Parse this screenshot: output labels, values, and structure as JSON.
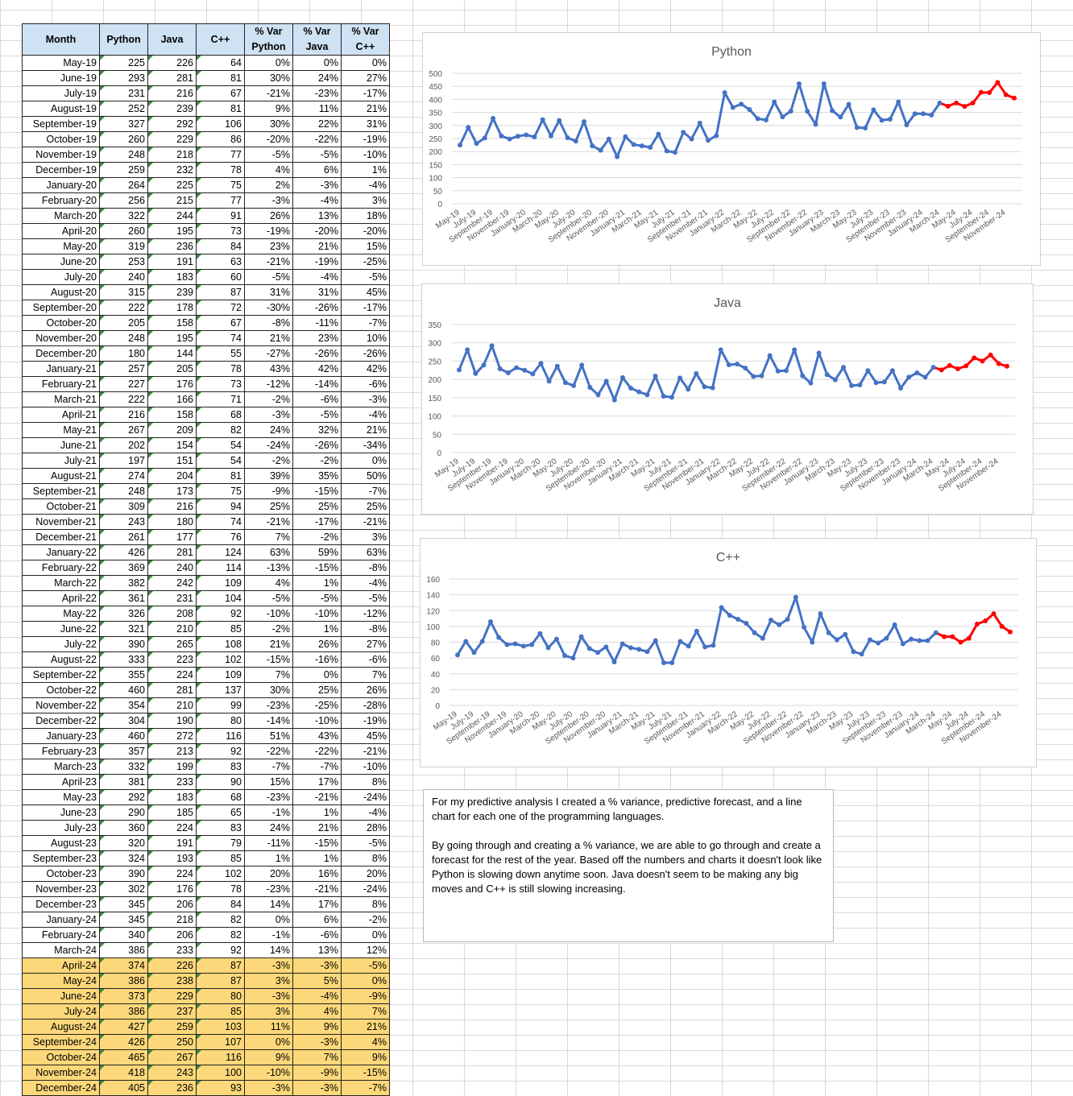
{
  "table": {
    "headers": [
      "Month",
      "Python",
      "Java",
      "C++",
      "% Var Python",
      "% Var Java",
      "% Var C++"
    ],
    "rows": [
      [
        "May-19",
        "225",
        "226",
        "64",
        "0%",
        "0%",
        "0%"
      ],
      [
        "June-19",
        "293",
        "281",
        "81",
        "30%",
        "24%",
        "27%"
      ],
      [
        "July-19",
        "231",
        "216",
        "67",
        "-21%",
        "-23%",
        "-17%"
      ],
      [
        "August-19",
        "252",
        "239",
        "81",
        "9%",
        "11%",
        "21%"
      ],
      [
        "September-19",
        "327",
        "292",
        "106",
        "30%",
        "22%",
        "31%"
      ],
      [
        "October-19",
        "260",
        "229",
        "86",
        "-20%",
        "-22%",
        "-19%"
      ],
      [
        "November-19",
        "248",
        "218",
        "77",
        "-5%",
        "-5%",
        "-10%"
      ],
      [
        "December-19",
        "259",
        "232",
        "78",
        "4%",
        "6%",
        "1%"
      ],
      [
        "January-20",
        "264",
        "225",
        "75",
        "2%",
        "-3%",
        "-4%"
      ],
      [
        "February-20",
        "256",
        "215",
        "77",
        "-3%",
        "-4%",
        "3%"
      ],
      [
        "March-20",
        "322",
        "244",
        "91",
        "26%",
        "13%",
        "18%"
      ],
      [
        "April-20",
        "260",
        "195",
        "73",
        "-19%",
        "-20%",
        "-20%"
      ],
      [
        "May-20",
        "319",
        "236",
        "84",
        "23%",
        "21%",
        "15%"
      ],
      [
        "June-20",
        "253",
        "191",
        "63",
        "-21%",
        "-19%",
        "-25%"
      ],
      [
        "July-20",
        "240",
        "183",
        "60",
        "-5%",
        "-4%",
        "-5%"
      ],
      [
        "August-20",
        "315",
        "239",
        "87",
        "31%",
        "31%",
        "45%"
      ],
      [
        "September-20",
        "222",
        "178",
        "72",
        "-30%",
        "-26%",
        "-17%"
      ],
      [
        "October-20",
        "205",
        "158",
        "67",
        "-8%",
        "-11%",
        "-7%"
      ],
      [
        "November-20",
        "248",
        "195",
        "74",
        "21%",
        "23%",
        "10%"
      ],
      [
        "December-20",
        "180",
        "144",
        "55",
        "-27%",
        "-26%",
        "-26%"
      ],
      [
        "January-21",
        "257",
        "205",
        "78",
        "43%",
        "42%",
        "42%"
      ],
      [
        "February-21",
        "227",
        "176",
        "73",
        "-12%",
        "-14%",
        "-6%"
      ],
      [
        "March-21",
        "222",
        "166",
        "71",
        "-2%",
        "-6%",
        "-3%"
      ],
      [
        "April-21",
        "216",
        "158",
        "68",
        "-3%",
        "-5%",
        "-4%"
      ],
      [
        "May-21",
        "267",
        "209",
        "82",
        "24%",
        "32%",
        "21%"
      ],
      [
        "June-21",
        "202",
        "154",
        "54",
        "-24%",
        "-26%",
        "-34%"
      ],
      [
        "July-21",
        "197",
        "151",
        "54",
        "-2%",
        "-2%",
        "0%"
      ],
      [
        "August-21",
        "274",
        "204",
        "81",
        "39%",
        "35%",
        "50%"
      ],
      [
        "September-21",
        "248",
        "173",
        "75",
        "-9%",
        "-15%",
        "-7%"
      ],
      [
        "October-21",
        "309",
        "216",
        "94",
        "25%",
        "25%",
        "25%"
      ],
      [
        "November-21",
        "243",
        "180",
        "74",
        "-21%",
        "-17%",
        "-21%"
      ],
      [
        "December-21",
        "261",
        "177",
        "76",
        "7%",
        "-2%",
        "3%"
      ],
      [
        "January-22",
        "426",
        "281",
        "124",
        "63%",
        "59%",
        "63%"
      ],
      [
        "February-22",
        "369",
        "240",
        "114",
        "-13%",
        "-15%",
        "-8%"
      ],
      [
        "March-22",
        "382",
        "242",
        "109",
        "4%",
        "1%",
        "-4%"
      ],
      [
        "April-22",
        "361",
        "231",
        "104",
        "-5%",
        "-5%",
        "-5%"
      ],
      [
        "May-22",
        "326",
        "208",
        "92",
        "-10%",
        "-10%",
        "-12%"
      ],
      [
        "June-22",
        "321",
        "210",
        "85",
        "-2%",
        "1%",
        "-8%"
      ],
      [
        "July-22",
        "390",
        "265",
        "108",
        "21%",
        "26%",
        "27%"
      ],
      [
        "August-22",
        "333",
        "223",
        "102",
        "-15%",
        "-16%",
        "-6%"
      ],
      [
        "September-22",
        "355",
        "224",
        "109",
        "7%",
        "0%",
        "7%"
      ],
      [
        "October-22",
        "460",
        "281",
        "137",
        "30%",
        "25%",
        "26%"
      ],
      [
        "November-22",
        "354",
        "210",
        "99",
        "-23%",
        "-25%",
        "-28%"
      ],
      [
        "December-22",
        "304",
        "190",
        "80",
        "-14%",
        "-10%",
        "-19%"
      ],
      [
        "January-23",
        "460",
        "272",
        "116",
        "51%",
        "43%",
        "45%"
      ],
      [
        "February-23",
        "357",
        "213",
        "92",
        "-22%",
        "-22%",
        "-21%"
      ],
      [
        "March-23",
        "332",
        "199",
        "83",
        "-7%",
        "-7%",
        "-10%"
      ],
      [
        "April-23",
        "381",
        "233",
        "90",
        "15%",
        "17%",
        "8%"
      ],
      [
        "May-23",
        "292",
        "183",
        "68",
        "-23%",
        "-21%",
        "-24%"
      ],
      [
        "June-23",
        "290",
        "185",
        "65",
        "-1%",
        "1%",
        "-4%"
      ],
      [
        "July-23",
        "360",
        "224",
        "83",
        "24%",
        "21%",
        "28%"
      ],
      [
        "August-23",
        "320",
        "191",
        "79",
        "-11%",
        "-15%",
        "-5%"
      ],
      [
        "September-23",
        "324",
        "193",
        "85",
        "1%",
        "1%",
        "8%"
      ],
      [
        "October-23",
        "390",
        "224",
        "102",
        "20%",
        "16%",
        "20%"
      ],
      [
        "November-23",
        "302",
        "176",
        "78",
        "-23%",
        "-21%",
        "-24%"
      ],
      [
        "December-23",
        "345",
        "206",
        "84",
        "14%",
        "17%",
        "8%"
      ],
      [
        "January-24",
        "345",
        "218",
        "82",
        "0%",
        "6%",
        "-2%"
      ],
      [
        "February-24",
        "340",
        "206",
        "82",
        "-1%",
        "-6%",
        "0%"
      ],
      [
        "March-24",
        "386",
        "233",
        "92",
        "14%",
        "13%",
        "12%"
      ],
      [
        "April-24",
        "374",
        "226",
        "87",
        "-3%",
        "-3%",
        "-5%"
      ],
      [
        "May-24",
        "386",
        "238",
        "87",
        "3%",
        "5%",
        "0%"
      ],
      [
        "June-24",
        "373",
        "229",
        "80",
        "-3%",
        "-4%",
        "-9%"
      ],
      [
        "July-24",
        "386",
        "237",
        "85",
        "3%",
        "4%",
        "7%"
      ],
      [
        "August-24",
        "427",
        "259",
        "103",
        "11%",
        "9%",
        "21%"
      ],
      [
        "September-24",
        "426",
        "250",
        "107",
        "0%",
        "-3%",
        "4%"
      ],
      [
        "October-24",
        "465",
        "267",
        "116",
        "9%",
        "7%",
        "9%"
      ],
      [
        "November-24",
        "418",
        "243",
        "100",
        "-10%",
        "-9%",
        "-15%"
      ],
      [
        "December-24",
        "405",
        "236",
        "93",
        "-3%",
        "-3%",
        "-7%"
      ]
    ],
    "forecast_start_index": 59
  },
  "chart_data": [
    {
      "type": "line",
      "title": "Python",
      "ylim": [
        0,
        500
      ],
      "yticks": [
        0,
        50,
        100,
        150,
        200,
        250,
        300,
        350,
        400,
        450,
        500
      ],
      "grid": true,
      "x_tick_labels": [
        "May-19",
        "July-19",
        "September-19",
        "November-19",
        "January-20",
        "March-20",
        "May-20",
        "July-20",
        "September-20",
        "November-20",
        "January-21",
        "March-21",
        "May-21",
        "July-21",
        "September-21",
        "November-21",
        "January-22",
        "March-22",
        "May-22",
        "July-22",
        "September-22",
        "November-22",
        "January-23",
        "March-23",
        "May-23",
        "July-23",
        "September-23",
        "November-23",
        "January-24",
        "March-24",
        "May-24",
        "July-24",
        "September-24",
        "November-24"
      ],
      "actual_color": "#4472c4",
      "forecast_color": "#ff0000",
      "forecast_start_index": 59,
      "values": [
        225,
        293,
        231,
        252,
        327,
        260,
        248,
        259,
        264,
        256,
        322,
        260,
        319,
        253,
        240,
        315,
        222,
        205,
        248,
        180,
        257,
        227,
        222,
        216,
        267,
        202,
        197,
        274,
        248,
        309,
        243,
        261,
        426,
        369,
        382,
        361,
        326,
        321,
        390,
        333,
        355,
        460,
        354,
        304,
        460,
        357,
        332,
        381,
        292,
        290,
        360,
        320,
        324,
        390,
        302,
        345,
        345,
        340,
        386,
        374,
        386,
        373,
        386,
        427,
        426,
        465,
        418,
        405
      ]
    },
    {
      "type": "line",
      "title": "Java",
      "ylim": [
        0,
        350
      ],
      "yticks": [
        0,
        50,
        100,
        150,
        200,
        250,
        300,
        350
      ],
      "grid": true,
      "x_tick_labels": [
        "May-19",
        "July-19",
        "September-19",
        "November-19",
        "January-20",
        "March-20",
        "May-20",
        "July-20",
        "September-20",
        "November-20",
        "January-21",
        "March-21",
        "May-21",
        "July-21",
        "September-21",
        "November-21",
        "January-22",
        "March-22",
        "May-22",
        "July-22",
        "September-22",
        "November-22",
        "January-23",
        "March-23",
        "May-23",
        "July-23",
        "September-23",
        "November-23",
        "January-24",
        "March-24",
        "May-24",
        "July-24",
        "September-24",
        "November-24"
      ],
      "actual_color": "#4472c4",
      "forecast_color": "#ff0000",
      "forecast_start_index": 59,
      "values": [
        226,
        281,
        216,
        239,
        292,
        229,
        218,
        232,
        225,
        215,
        244,
        195,
        236,
        191,
        183,
        239,
        178,
        158,
        195,
        144,
        205,
        176,
        166,
        158,
        209,
        154,
        151,
        204,
        173,
        216,
        180,
        177,
        281,
        240,
        242,
        231,
        208,
        210,
        265,
        223,
        224,
        281,
        210,
        190,
        272,
        213,
        199,
        233,
        183,
        185,
        224,
        191,
        193,
        224,
        176,
        206,
        218,
        206,
        233,
        226,
        238,
        229,
        237,
        259,
        250,
        267,
        243,
        236
      ]
    },
    {
      "type": "line",
      "title": "C++",
      "ylim": [
        0,
        160
      ],
      "yticks": [
        0,
        20,
        40,
        60,
        80,
        100,
        120,
        140,
        160
      ],
      "grid": true,
      "x_tick_labels": [
        "May-19",
        "July-19",
        "September-19",
        "November-19",
        "January-20",
        "March-20",
        "May-20",
        "July-20",
        "September-20",
        "November-20",
        "January-21",
        "March-21",
        "May-21",
        "July-21",
        "September-21",
        "November-21",
        "January-22",
        "March-22",
        "May-22",
        "July-22",
        "September-22",
        "November-22",
        "January-23",
        "March-23",
        "May-23",
        "July-23",
        "September-23",
        "November-23",
        "January-24",
        "March-24",
        "May-24",
        "July-24",
        "September-24",
        "November-24"
      ],
      "actual_color": "#4472c4",
      "forecast_color": "#ff0000",
      "forecast_start_index": 59,
      "values": [
        64,
        81,
        67,
        81,
        106,
        86,
        77,
        78,
        75,
        77,
        91,
        73,
        84,
        63,
        60,
        87,
        72,
        67,
        74,
        55,
        78,
        73,
        71,
        68,
        82,
        54,
        54,
        81,
        75,
        94,
        74,
        76,
        124,
        114,
        109,
        104,
        92,
        85,
        108,
        102,
        109,
        137,
        99,
        80,
        116,
        92,
        83,
        90,
        68,
        65,
        83,
        79,
        85,
        102,
        78,
        84,
        82,
        82,
        92,
        87,
        87,
        80,
        85,
        103,
        107,
        116,
        100,
        93
      ]
    }
  ],
  "note": {
    "paragraph1": "For my predictive analysis I created a % variance, predictive forecast, and a line chart for each one of the programming languages.",
    "paragraph2": "By going through and creating a % variance, we are able to go through and create a forecast for the rest of the year. Based off the numbers and charts it doesn't look like Python is slowing down anytime soon. Java doesn't seem to be making any big moves and C++ is still slowing increasing."
  }
}
